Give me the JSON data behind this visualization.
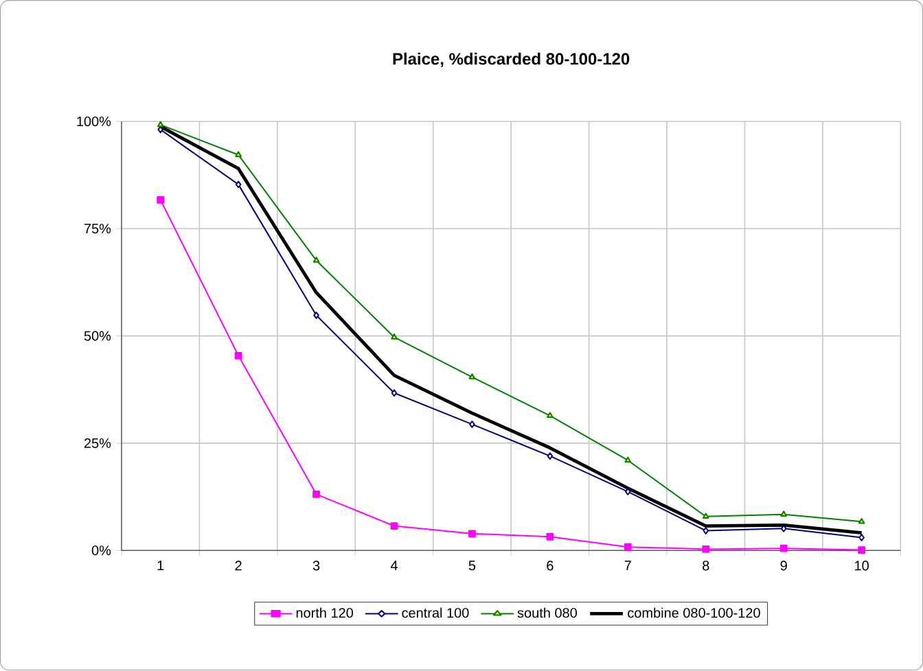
{
  "chart_data": {
    "type": "line",
    "title": "Plaice, %discarded 80-100-120",
    "categories": [
      "1",
      "2",
      "3",
      "4",
      "5",
      "6",
      "7",
      "8",
      "9",
      "10"
    ],
    "series": [
      {
        "name": "north 120",
        "color": "#ff00ff",
        "marker": "square",
        "values": [
          81.7,
          45.4,
          13.1,
          5.7,
          3.9,
          3.2,
          0.8,
          0.3,
          0.5,
          0.1
        ]
      },
      {
        "name": "central 100",
        "color": "#000080",
        "marker": "diamond",
        "values": [
          98.1,
          85.3,
          54.8,
          36.7,
          29.4,
          22.0,
          13.7,
          4.6,
          5.1,
          3.0
        ]
      },
      {
        "name": "south 080",
        "color": "#008000",
        "marker": "triangle",
        "values": [
          99.2,
          92.2,
          67.6,
          49.7,
          40.4,
          31.4,
          21.0,
          7.9,
          8.4,
          6.7
        ]
      },
      {
        "name": "combine 080-100-120",
        "color": "#000000",
        "marker": "none",
        "values": [
          98.8,
          89.0,
          60.1,
          40.8,
          32.0,
          23.9,
          14.5,
          5.7,
          5.9,
          4.1
        ]
      }
    ],
    "ylim": [
      0,
      100
    ],
    "yticks": [
      {
        "value": 0,
        "label": "0%"
      },
      {
        "value": 25,
        "label": "25%"
      },
      {
        "value": 50,
        "label": "50%"
      },
      {
        "value": 75,
        "label": "75%"
      },
      {
        "value": 100,
        "label": "100%"
      }
    ],
    "grid": true,
    "legend": "bottom",
    "line_style": "solid"
  }
}
